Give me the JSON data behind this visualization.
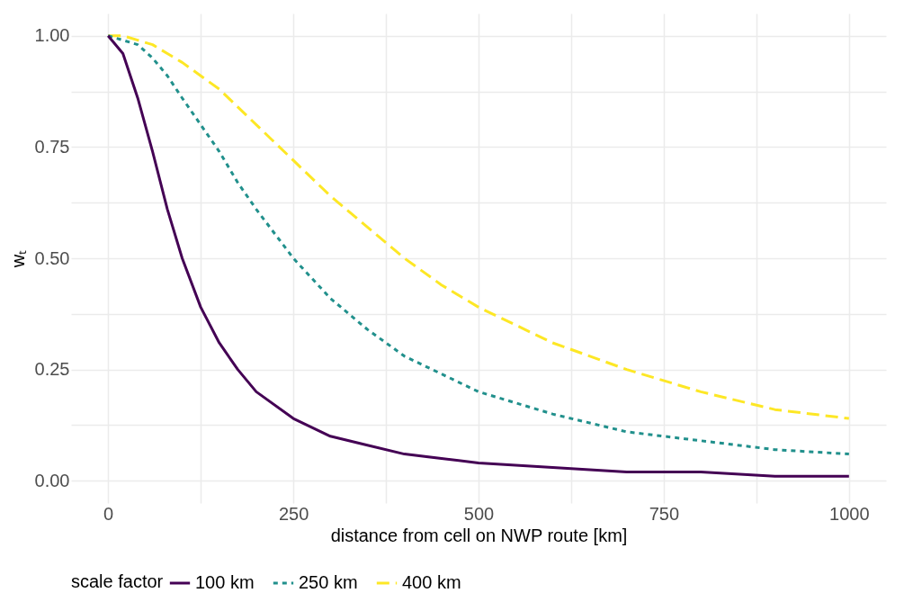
{
  "chart_data": {
    "type": "line",
    "xlabel": "distance from cell on NWP route [km]",
    "ylabel": "wₜ",
    "legend_title": "scale factor",
    "x": [
      0,
      20,
      40,
      60,
      80,
      100,
      125,
      150,
      175,
      200,
      250,
      300,
      350,
      400,
      450,
      500,
      600,
      700,
      800,
      900,
      1000
    ],
    "series": [
      {
        "name": "100 km",
        "color": "#440154",
        "line_style": "solid",
        "values": [
          1,
          0.96,
          0.86,
          0.74,
          0.61,
          0.5,
          0.39,
          0.31,
          0.25,
          0.2,
          0.14,
          0.1,
          0.08,
          0.06,
          0.05,
          0.04,
          0.03,
          0.02,
          0.02,
          0.01,
          0.01
        ]
      },
      {
        "name": "250 km",
        "color": "#21908c",
        "line_style": "dotted",
        "values": [
          1,
          0.99,
          0.98,
          0.95,
          0.91,
          0.86,
          0.8,
          0.74,
          0.67,
          0.61,
          0.5,
          0.41,
          0.34,
          0.28,
          0.24,
          0.2,
          0.15,
          0.11,
          0.09,
          0.07,
          0.06
        ]
      },
      {
        "name": "400 km",
        "color": "#fde725",
        "line_style": "dashed",
        "values": [
          1,
          1,
          0.99,
          0.98,
          0.96,
          0.94,
          0.91,
          0.88,
          0.84,
          0.8,
          0.72,
          0.64,
          0.57,
          0.5,
          0.44,
          0.39,
          0.31,
          0.25,
          0.2,
          0.16,
          0.14
        ]
      }
    ],
    "xlim": [
      -50,
      1050
    ],
    "ylim": [
      -0.05,
      1.05
    ],
    "xticks": [
      0,
      {
        "value": 125,
        "label": null
      },
      250,
      {
        "value": 375,
        "label": null
      },
      500,
      {
        "value": 625,
        "label": null
      },
      750,
      {
        "value": 875,
        "label": null
      },
      1000
    ],
    "yticks": [
      {
        "value": 0,
        "label": "0.00"
      },
      {
        "value": 0.125,
        "label": null
      },
      {
        "value": 0.25,
        "label": "0.25"
      },
      {
        "value": 0.375,
        "label": null
      },
      {
        "value": 0.5,
        "label": "0.50"
      },
      {
        "value": 0.625,
        "label": null
      },
      {
        "value": 0.75,
        "label": "0.75"
      },
      {
        "value": 0.875,
        "label": null
      },
      {
        "value": 1,
        "label": "1.00"
      }
    ],
    "grid": true,
    "legend": "bottom",
    "marker": "none"
  }
}
